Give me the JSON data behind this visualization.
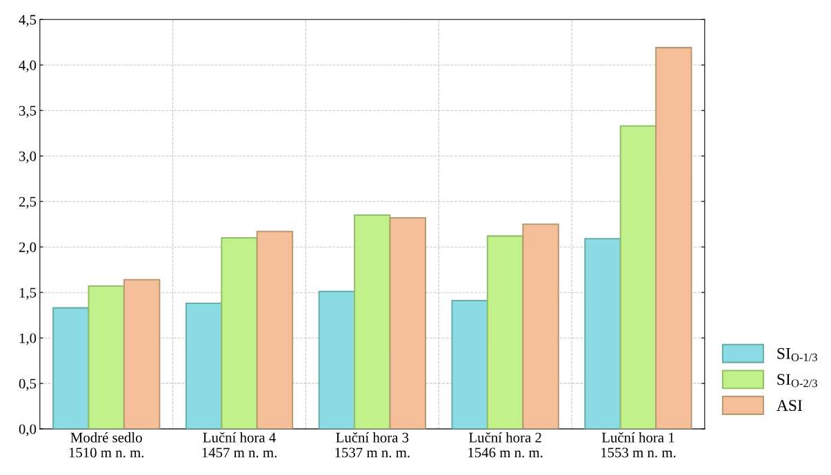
{
  "chart_data": {
    "type": "bar",
    "categories": [
      "Modré sedlo\n1510 m n. m.",
      "Luční hora 4\n1457 m n. m.",
      "Luční hora 3\n1537 m n. m.",
      "Luční hora 2\n1546 m n. m.",
      "Luční hora 1\n1553 m n. m."
    ],
    "series": [
      {
        "name": "SI$_{O-1/3}$",
        "color": "#8adbe3",
        "values": [
          1.33,
          1.38,
          1.51,
          1.41,
          2.09
        ]
      },
      {
        "name": "SI$_{O-2/3}$",
        "color": "#c2f08a",
        "values": [
          1.57,
          2.1,
          2.35,
          2.12,
          3.33
        ]
      },
      {
        "name": "ASI",
        "color": "#f5bf9a",
        "values": [
          1.64,
          2.17,
          2.32,
          2.25,
          4.19
        ]
      }
    ],
    "ylim": [
      0,
      4.5
    ],
    "yticks": [
      {
        "value": 0,
        "label": "0,0"
      },
      {
        "value": 0.5,
        "label": "0,5"
      },
      {
        "value": 1,
        "label": "1,0"
      },
      {
        "value": 1.5,
        "label": "1,5"
      },
      {
        "value": 2,
        "label": "2,0"
      },
      {
        "value": 2.5,
        "label": "2,5"
      },
      {
        "value": 3,
        "label": "3,0"
      },
      {
        "value": 3.5,
        "label": "3,5"
      },
      {
        "value": 4,
        "label": "4,0"
      },
      {
        "value": 4.5,
        "label": "4,5"
      }
    ],
    "grid": true,
    "legend": "bottom right"
  }
}
